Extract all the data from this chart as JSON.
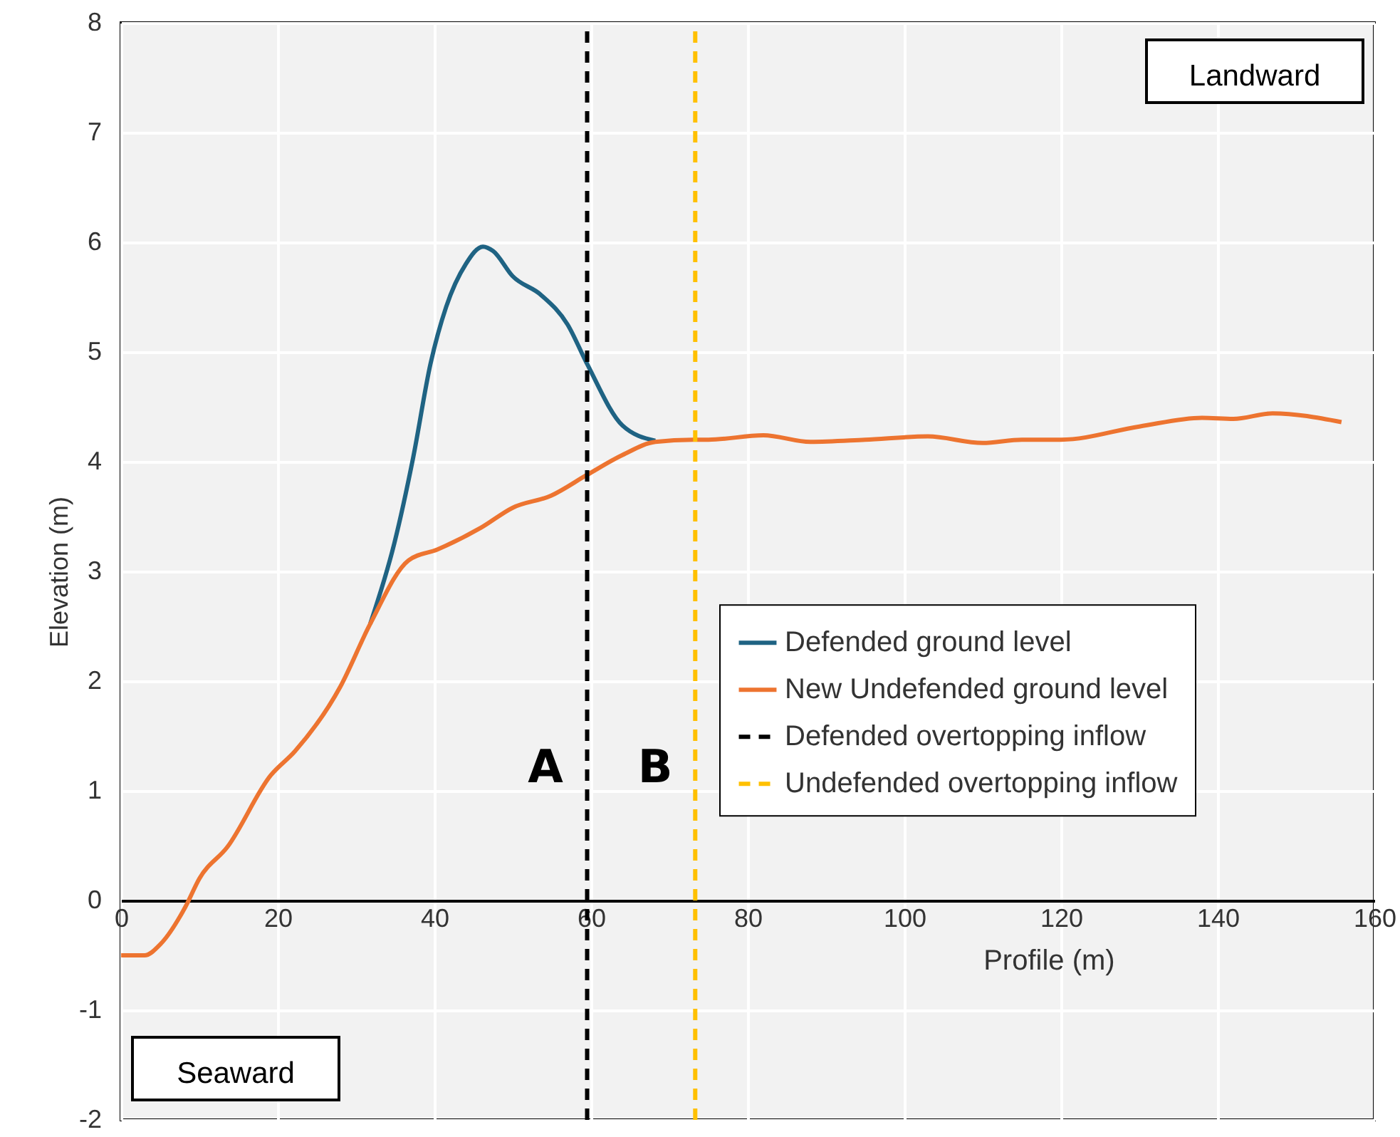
{
  "chart_data": {
    "type": "line",
    "xlabel": "Profile (m)",
    "ylabel": "Elevation (m)",
    "xlim": [
      0,
      160
    ],
    "xticks": [
      0,
      20,
      40,
      60,
      80,
      100,
      120,
      140,
      160
    ],
    "ylim": [
      -2,
      8
    ],
    "yticks": [
      -2,
      -1,
      0,
      1,
      2,
      3,
      4,
      5,
      6,
      7,
      8
    ],
    "grid": true,
    "legend": "right",
    "annotations": [
      "Landward",
      "Seaward",
      "A",
      "B"
    ],
    "series": [
      {
        "name": "Defended ground level",
        "color": "#1f6383",
        "line_style": "solid",
        "x": [
          31.8,
          34.9,
          37.3,
          39.5,
          41.5,
          44,
          46.2,
          47.5,
          50,
          53.6,
          57,
          59.5,
          64,
          68.2
        ],
        "values": [
          2.52,
          3.26,
          4.04,
          4.89,
          5.41,
          5.8,
          5.96,
          5.92,
          5.69,
          5.52,
          5.25,
          4.89,
          4.33,
          4.19
        ]
      },
      {
        "name": "New Undefended ground level",
        "color": "#ed7430",
        "line_style": "solid",
        "x": [
          0,
          3,
          5,
          8.2,
          10,
          13.6,
          19.1,
          22.2,
          28,
          31.8,
          36.7,
          40.4,
          46,
          50,
          54.9,
          59.5,
          64,
          68.2,
          73,
          75,
          82,
          88,
          95,
          103,
          110,
          115,
          120,
          130,
          138,
          142,
          147,
          155.8
        ],
        "values": [
          -0.5,
          -0.5,
          -0.4,
          -0.06,
          0.2,
          0.49,
          1.14,
          1.36,
          1.95,
          2.52,
          3.1,
          3.2,
          3.4,
          3.58,
          3.69,
          3.88,
          4.06,
          4.18,
          4.2,
          4.2,
          4.24,
          4.18,
          4.2,
          4.23,
          4.17,
          4.2,
          4.2,
          4.32,
          4.4,
          4.39,
          4.44,
          4.36
        ]
      },
      {
        "name": "Defended overtopping inflow",
        "color": "#000000",
        "line_style": "dashed",
        "x": [
          59.5,
          59.5
        ],
        "values": [
          -2,
          8
        ]
      },
      {
        "name": "Undefended overtopping inflow",
        "color": "#ffc000",
        "line_style": "dashed",
        "x": [
          73.3,
          73.3
        ],
        "values": [
          -2,
          8
        ]
      }
    ]
  }
}
